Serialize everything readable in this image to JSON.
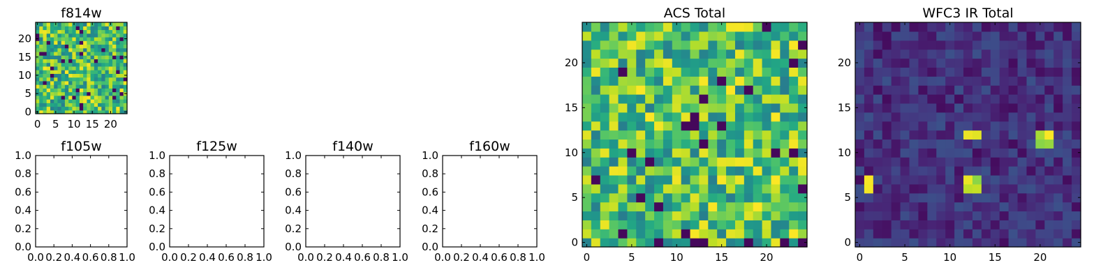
{
  "figure_background": "#ffffff",
  "colormap": "viridis",
  "chart_data": [
    {
      "type": "heatmap",
      "title": "f814w",
      "grid": false,
      "colormap": "viridis",
      "data_shape": [
        25,
        25
      ],
      "pattern": "noise",
      "xlim": [
        -0.5,
        24.5
      ],
      "ylim": [
        -0.5,
        24.5
      ],
      "xticks": [
        0,
        5,
        10,
        15,
        20
      ],
      "yticks": [
        0,
        5,
        10,
        15,
        20
      ],
      "xtick_labels": [
        "0",
        "5",
        "10",
        "15",
        "20"
      ],
      "ytick_labels": [
        "0",
        "5",
        "10",
        "15",
        "20"
      ]
    },
    {
      "type": "heatmap",
      "title": "f105w",
      "empty": true,
      "xlim": [
        0,
        1
      ],
      "ylim": [
        0,
        1
      ],
      "xticks": [
        0,
        0.2,
        0.4,
        0.6,
        0.8,
        1.0
      ],
      "yticks": [
        0,
        0.2,
        0.4,
        0.6,
        0.8,
        1.0
      ],
      "xtick_labels": [
        "0.0",
        "0.2",
        "0.4",
        "0.6",
        "0.8",
        "1.0"
      ],
      "ytick_labels": [
        "0.0",
        "0.2",
        "0.4",
        "0.6",
        "0.8",
        "1.0"
      ]
    },
    {
      "type": "heatmap",
      "title": "f125w",
      "empty": true,
      "xlim": [
        0,
        1
      ],
      "ylim": [
        0,
        1
      ],
      "xticks": [
        0,
        0.2,
        0.4,
        0.6,
        0.8,
        1.0
      ],
      "yticks": [
        0,
        0.2,
        0.4,
        0.6,
        0.8,
        1.0
      ],
      "xtick_labels": [
        "0.0",
        "0.2",
        "0.4",
        "0.6",
        "0.8",
        "1.0"
      ],
      "ytick_labels": [
        "0.0",
        "0.2",
        "0.4",
        "0.6",
        "0.8",
        "1.0"
      ]
    },
    {
      "type": "heatmap",
      "title": "f140w",
      "empty": true,
      "xlim": [
        0,
        1
      ],
      "ylim": [
        0,
        1
      ],
      "xticks": [
        0,
        0.2,
        0.4,
        0.6,
        0.8,
        1.0
      ],
      "yticks": [
        0,
        0.2,
        0.4,
        0.6,
        0.8,
        1.0
      ],
      "xtick_labels": [
        "0.0",
        "0.2",
        "0.4",
        "0.6",
        "0.8",
        "1.0"
      ],
      "ytick_labels": [
        "0.0",
        "0.2",
        "0.4",
        "0.6",
        "0.8",
        "1.0"
      ]
    },
    {
      "type": "heatmap",
      "title": "f160w",
      "empty": true,
      "xlim": [
        0,
        1
      ],
      "ylim": [
        0,
        1
      ],
      "xticks": [
        0,
        0.2,
        0.4,
        0.6,
        0.8,
        1.0
      ],
      "yticks": [
        0,
        0.2,
        0.4,
        0.6,
        0.8,
        1.0
      ],
      "xtick_labels": [
        "0.0",
        "0.2",
        "0.4",
        "0.6",
        "0.8",
        "1.0"
      ],
      "ytick_labels": [
        "0.0",
        "0.2",
        "0.4",
        "0.6",
        "0.8",
        "1.0"
      ]
    },
    {
      "type": "heatmap",
      "title": "ACS Total",
      "grid": false,
      "colormap": "viridis",
      "data_shape": [
        25,
        25
      ],
      "pattern": "noise",
      "xlim": [
        -0.5,
        24.5
      ],
      "ylim": [
        -0.5,
        24.5
      ],
      "xticks": [
        0,
        5,
        10,
        15,
        20
      ],
      "yticks": [
        0,
        5,
        10,
        15,
        20
      ],
      "xtick_labels": [
        "0",
        "5",
        "10",
        "15",
        "20"
      ],
      "ytick_labels": [
        "0",
        "5",
        "10",
        "15",
        "20"
      ]
    },
    {
      "type": "heatmap",
      "title": "WFC3 IR Total",
      "grid": false,
      "colormap": "viridis",
      "data_shape": [
        25,
        25
      ],
      "pattern": "dark-background-with-bright-spots",
      "bright_spots": [
        [
          1,
          7
        ],
        [
          1,
          6
        ],
        [
          12,
          7
        ],
        [
          12,
          6
        ],
        [
          13,
          7
        ],
        [
          13,
          6
        ],
        [
          12,
          12
        ],
        [
          13,
          12
        ],
        [
          20,
          12
        ],
        [
          21,
          12
        ],
        [
          21,
          11
        ],
        [
          20,
          11
        ]
      ],
      "xlim": [
        -0.5,
        24.5
      ],
      "ylim": [
        -0.5,
        24.5
      ],
      "xticks": [
        0,
        5,
        10,
        15,
        20
      ],
      "yticks": [
        0,
        5,
        10,
        15,
        20
      ],
      "xtick_labels": [
        "0",
        "5",
        "10",
        "15",
        "20"
      ],
      "ytick_labels": [
        "0",
        "5",
        "10",
        "15",
        "20"
      ]
    }
  ]
}
